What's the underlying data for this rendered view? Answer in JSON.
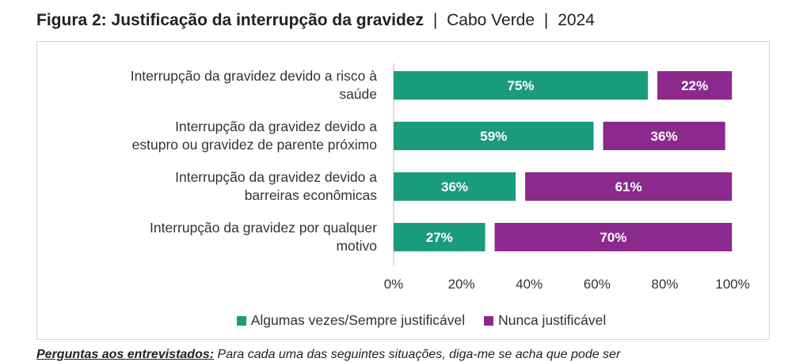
{
  "header": {
    "title_bold": "Figura 2: Justificação da interrupção da gravidez",
    "sep1": "|",
    "country": "Cabo Verde",
    "sep2": "|",
    "year": "2024"
  },
  "chart_data": {
    "type": "bar",
    "orientation": "horizontal",
    "stacked": true,
    "categories": [
      [
        "Interrupção da gravidez devido a risco à",
        "saúde"
      ],
      [
        "Interrupção da gravidez devido a",
        "estupro ou gravidez de parente próximo"
      ],
      [
        "Interrupção da gravidez devido a",
        "barreiras econômicas"
      ],
      [
        "Interrupção da gravidez por qualquer",
        "motivo"
      ]
    ],
    "series": [
      {
        "name": "Algumas vezes/Sempre justificável",
        "color": "#1a9b7c",
        "values": [
          75,
          59,
          36,
          27
        ],
        "labels": [
          "75%",
          "59%",
          "36%",
          "27%"
        ]
      },
      {
        "name": "Nunca justificável",
        "color": "#8b2a8c",
        "values": [
          22,
          36,
          61,
          70
        ],
        "labels": [
          "22%",
          "36%",
          "61%",
          "70%"
        ]
      }
    ],
    "xlim": [
      0,
      100
    ],
    "x_ticks": [
      "0%",
      "20%",
      "40%",
      "60%",
      "80%",
      "100%"
    ],
    "legend_position": "bottom",
    "grid": false
  },
  "footer": {
    "bold": "Perguntas aos entrevistados:",
    "text": " Para cada uma das seguintes situações, diga-me se acha que pode ser"
  }
}
